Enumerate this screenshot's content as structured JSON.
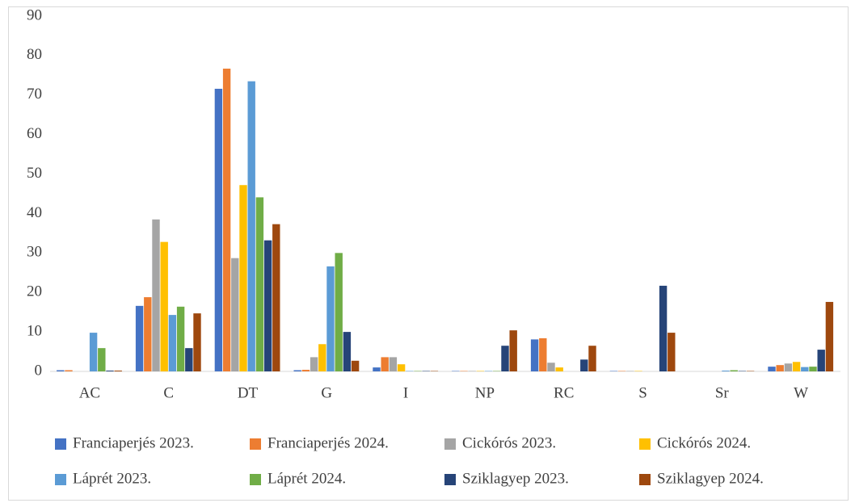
{
  "chart_data": {
    "type": "bar",
    "categories": [
      "AC",
      "C",
      "DT",
      "G",
      "I",
      "NP",
      "RC",
      "S",
      "Sr",
      "W"
    ],
    "series": [
      {
        "name": "Franciaperjés 2023.",
        "color": "#4472c4",
        "values": [
          0.3,
          16.6,
          71.6,
          0.3,
          1.0,
          0.1,
          8.1,
          0.1,
          0,
          1.2
        ]
      },
      {
        "name": "Franciaperjés 2024.",
        "color": "#ed7d31",
        "values": [
          0.3,
          18.8,
          76.7,
          0.4,
          3.6,
          0.1,
          8.4,
          0.1,
          0,
          1.6
        ]
      },
      {
        "name": "Cickórós 2023.",
        "color": "#a5a5a5",
        "values": [
          0,
          38.5,
          28.7,
          3.6,
          3.6,
          0.1,
          2.2,
          0.1,
          0,
          2.0
        ]
      },
      {
        "name": "Cickórós 2024.",
        "color": "#ffc000",
        "values": [
          0,
          32.8,
          47.2,
          6.9,
          1.8,
          0.1,
          1.0,
          0.1,
          0,
          2.4
        ]
      },
      {
        "name": "Láprét 2023.",
        "color": "#5b9bd5",
        "values": [
          9.8,
          14.3,
          73.5,
          26.6,
          0.1,
          0.1,
          0,
          0,
          0.2,
          1.1
        ]
      },
      {
        "name": "Láprét 2024.",
        "color": "#70ad47",
        "values": [
          5.9,
          16.4,
          44.1,
          30.0,
          0.1,
          0.1,
          0,
          0,
          0.3,
          1.2
        ]
      },
      {
        "name": "Sziklagyep 2023.",
        "color": "#264478",
        "values": [
          0.2,
          5.9,
          33.2,
          10.0,
          0.1,
          6.5,
          3.0,
          21.7,
          0.1,
          5.5
        ]
      },
      {
        "name": "Sziklagyep 2024.",
        "color": "#9e480e",
        "values": [
          0.2,
          14.7,
          37.3,
          2.7,
          0.1,
          10.4,
          6.5,
          9.8,
          0.1,
          17.6
        ]
      }
    ],
    "ylim": [
      0,
      90
    ],
    "yticks": [
      0,
      10,
      20,
      30,
      40,
      50,
      60,
      70,
      80,
      90
    ],
    "grid": false,
    "legend": "bottom"
  }
}
